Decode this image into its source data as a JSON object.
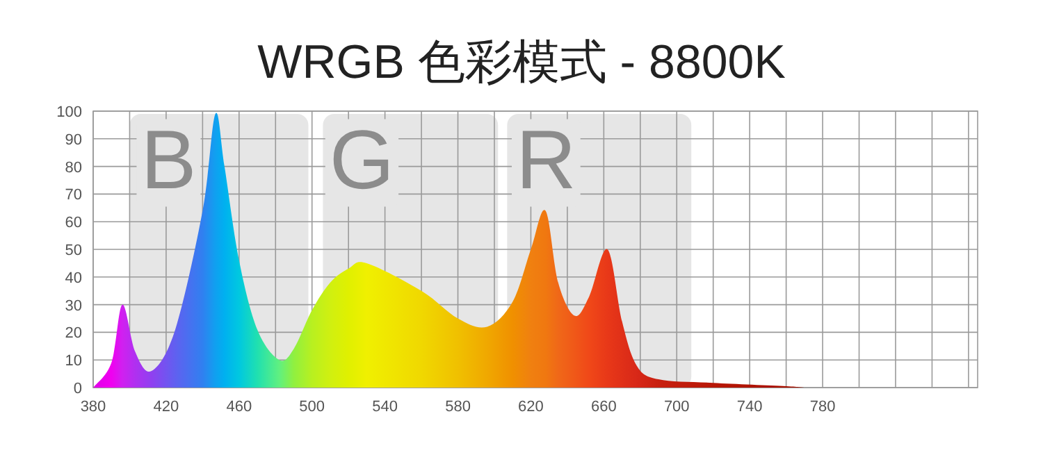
{
  "chart_data": {
    "type": "area",
    "title": "WRGB 色彩模式 - 8800K",
    "x": [
      380,
      390,
      396,
      403,
      412,
      425,
      440,
      447,
      452,
      460,
      470,
      482,
      490,
      500,
      510,
      520,
      530,
      560,
      580,
      596,
      610,
      620,
      628,
      635,
      644,
      652,
      662,
      670,
      678,
      690,
      720,
      760,
      770
    ],
    "series": [
      {
        "values": [
          0,
          9,
          30,
          13,
          6,
          21,
          64,
          99,
          80,
          46,
          21,
          10,
          14,
          28,
          38,
          43,
          45,
          35,
          25,
          22,
          31,
          50,
          64,
          38,
          26,
          33,
          50,
          24,
          8,
          3,
          1.7,
          0.5,
          0
        ],
        "colors": [
          "#e000e8",
          "#f000f0",
          "#d020f0",
          "#b030f0",
          "#9040f0",
          "#6060f0",
          "#3080f0",
          "#10a0f0",
          "#00b0f0",
          "#00c8e0",
          "#20e0b0",
          "#60f080",
          "#90f040",
          "#b8f020",
          "#d0f010",
          "#e0f000",
          "#f0f000",
          "#f0d800",
          "#f0c000",
          "#f0a800",
          "#f09000",
          "#f08010",
          "#f07810",
          "#f06818",
          "#f05818",
          "#f04818",
          "#e83818",
          "#e03018",
          "#d82818",
          "#c82010",
          "#b81808",
          "#a81000",
          "#a01000"
        ]
      }
    ],
    "xlim": [
      380,
      865
    ],
    "xticks": [
      380,
      {
        "value": 400,
        "label": null
      },
      420,
      {
        "value": 440,
        "label": null
      },
      460,
      {
        "value": 480,
        "label": null
      },
      500,
      {
        "value": 520,
        "label": null
      },
      540,
      {
        "value": 560,
        "label": null
      },
      580,
      {
        "value": 600,
        "label": null
      },
      620,
      {
        "value": 640,
        "label": null
      },
      660,
      {
        "value": 680,
        "label": null
      },
      700,
      {
        "value": 720,
        "label": null
      },
      740,
      {
        "value": 760,
        "label": null
      },
      780,
      {
        "value": 800,
        "label": null
      },
      {
        "value": 820,
        "label": null
      },
      {
        "value": 840,
        "label": null
      },
      {
        "value": 860,
        "label": null
      }
    ],
    "ylim": [
      0,
      100
    ],
    "yticks": [
      0,
      10,
      20,
      30,
      40,
      50,
      60,
      70,
      80,
      90,
      100
    ],
    "grid": true,
    "bands": [
      {
        "axis": "x",
        "from": 400,
        "to": 498,
        "label": "B",
        "color": "#e6e6e6"
      },
      {
        "axis": "x",
        "from": 506,
        "to": 602,
        "label": "G",
        "color": "#e6e6e6"
      },
      {
        "axis": "x",
        "from": 607,
        "to": 708,
        "label": "R",
        "color": "#e6e6e6"
      }
    ]
  }
}
